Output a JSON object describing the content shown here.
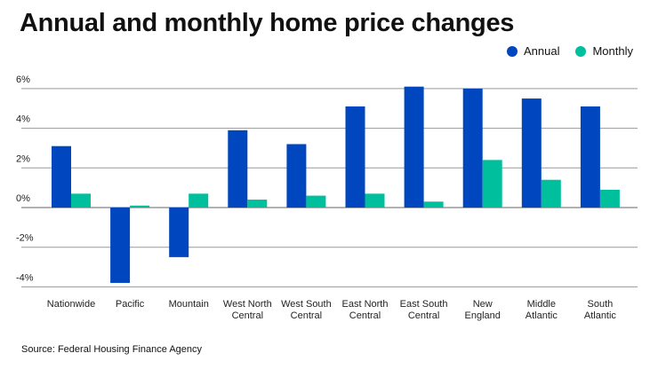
{
  "chart_data": {
    "type": "bar",
    "title": "Annual and monthly home price changes",
    "categories": [
      [
        "Nationwide"
      ],
      [
        "Pacific"
      ],
      [
        "Mountain"
      ],
      [
        "West North",
        "Central"
      ],
      [
        "West South",
        "Central"
      ],
      [
        "East North",
        "Central"
      ],
      [
        "East South",
        "Central"
      ],
      [
        "New",
        "England"
      ],
      [
        "Middle",
        "Atlantic"
      ],
      [
        "South",
        "Atlantic"
      ]
    ],
    "series": [
      {
        "name": "Annual",
        "color": "#0046BE",
        "values": [
          3.1,
          -3.8,
          -2.5,
          3.9,
          3.2,
          5.1,
          6.1,
          6.0,
          5.5,
          5.1
        ]
      },
      {
        "name": "Monthly",
        "color": "#00BF9C",
        "values": [
          0.7,
          0.1,
          0.7,
          0.4,
          0.6,
          0.7,
          0.3,
          2.4,
          1.4,
          0.9
        ]
      }
    ],
    "yticks": [
      6,
      4,
      2,
      0,
      -2,
      -4
    ],
    "ytick_labels": [
      "6%",
      "4%",
      "2%",
      "0%",
      "-2%",
      "-4%"
    ],
    "ylim": [
      -4,
      6
    ],
    "xlabel": "",
    "ylabel": "",
    "grid": true,
    "legend_position": "top-right",
    "source": "Source: Federal Housing Finance Agency"
  }
}
